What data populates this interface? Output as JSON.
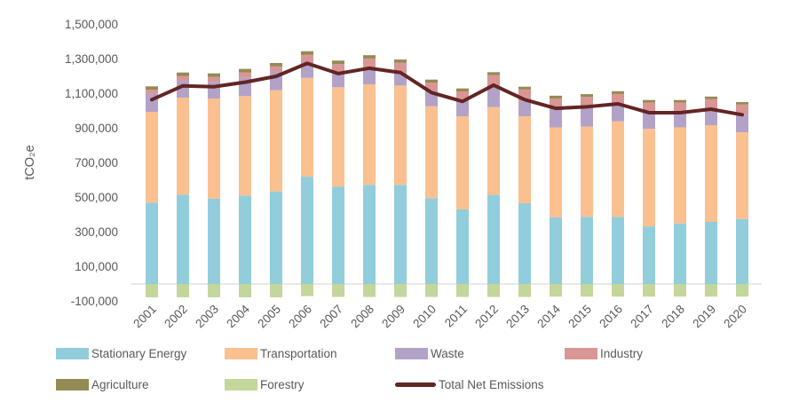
{
  "chart_data": {
    "type": "stacked-bar-with-line",
    "title": "",
    "ylabel": "tCO₂e",
    "xlabel": "",
    "ylim": [
      -100000,
      1500000
    ],
    "y_ticks": [
      1500000,
      1300000,
      1100000,
      900000,
      700000,
      500000,
      300000,
      100000,
      -100000
    ],
    "grid": "zero-line-only",
    "legend_position": "bottom",
    "categories": [
      "2001",
      "2002",
      "2003",
      "2004",
      "2005",
      "2006",
      "2007",
      "2008",
      "2009",
      "2010",
      "2011",
      "2012",
      "2013",
      "2014",
      "2015",
      "2016",
      "2017",
      "2018",
      "2019",
      "2020"
    ],
    "series": [
      {
        "name": "Stationary Energy",
        "color": "#92CDDC",
        "values": [
          470000,
          516000,
          494000,
          511000,
          535000,
          620000,
          563000,
          573000,
          573000,
          496000,
          431000,
          515000,
          467000,
          385000,
          388000,
          388000,
          333000,
          350000,
          359000,
          376000
        ]
      },
      {
        "name": "Transportation",
        "color": "#FAC090",
        "values": [
          525000,
          561000,
          578000,
          575000,
          585000,
          571000,
          574000,
          581000,
          574000,
          531000,
          538000,
          507000,
          502000,
          520000,
          522000,
          552000,
          564000,
          555000,
          559000,
          501000
        ]
      },
      {
        "name": "Waste",
        "color": "#B3A2C7",
        "values": [
          103000,
          97000,
          96000,
          105000,
          106000,
          91000,
          89000,
          99000,
          77000,
          86000,
          96000,
          124000,
          84000,
          104000,
          111000,
          94000,
          94000,
          90000,
          90000,
          102000
        ]
      },
      {
        "name": "Industry",
        "color": "#D99694",
        "values": [
          25000,
          27000,
          28000,
          32000,
          31000,
          42000,
          45000,
          50000,
          55000,
          51000,
          48000,
          61000,
          71000,
          63000,
          60000,
          64000,
          58000,
          54000,
          61000,
          58000
        ]
      },
      {
        "name": "Agriculture",
        "color": "#948A54",
        "values": [
          19000,
          21000,
          21000,
          20000,
          20000,
          21000,
          20000,
          19000,
          18000,
          17000,
          17000,
          17000,
          16000,
          16000,
          16000,
          16000,
          14000,
          14000,
          14000,
          14000
        ]
      },
      {
        "name": "Forestry",
        "color": "#C3D69B",
        "values": [
          -77000,
          -77000,
          -77000,
          -77000,
          -77000,
          -70000,
          -75000,
          -75000,
          -75000,
          -75000,
          -75000,
          -75000,
          -75000,
          -73000,
          -73000,
          -73000,
          -73000,
          -73000,
          -73000,
          -73000
        ]
      }
    ],
    "total_net": {
      "name": "Total Net Emissions",
      "color": "#632523",
      "values": [
        1065000,
        1145000,
        1140000,
        1166000,
        1200000,
        1275000,
        1216000,
        1247000,
        1222000,
        1106000,
        1055000,
        1149000,
        1065000,
        1015000,
        1024000,
        1041000,
        990000,
        990000,
        1010000,
        978000
      ]
    },
    "colors": {
      "axis_line": "#D9D9D9",
      "text": "#595959",
      "background": "#FFFFFF"
    }
  }
}
